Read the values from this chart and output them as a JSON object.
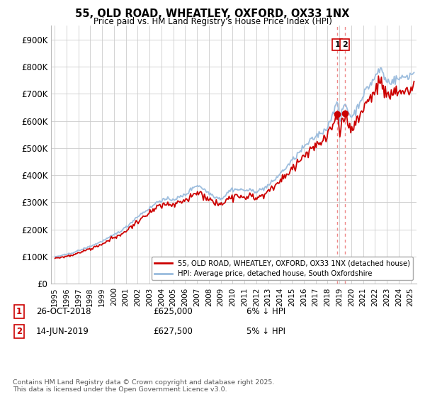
{
  "title": "55, OLD ROAD, WHEATLEY, OXFORD, OX33 1NX",
  "subtitle": "Price paid vs. HM Land Registry's House Price Index (HPI)",
  "background_color": "#ffffff",
  "plot_bg_color": "#ffffff",
  "grid_color": "#cccccc",
  "legend1_label": "55, OLD ROAD, WHEATLEY, OXFORD, OX33 1NX (detached house)",
  "legend2_label": "HPI: Average price, detached house, South Oxfordshire",
  "line1_color": "#cc0000",
  "line2_color": "#99bbdd",
  "sale1_date": "26-OCT-2018",
  "sale1_price": "£625,000",
  "sale1_pct": "6% ↓ HPI",
  "sale2_date": "14-JUN-2019",
  "sale2_price": "£627,500",
  "sale2_pct": "5% ↓ HPI",
  "footnote": "Contains HM Land Registry data © Crown copyright and database right 2025.\nThis data is licensed under the Open Government Licence v3.0.",
  "ylim": [
    0,
    950000
  ],
  "yticks": [
    0,
    100000,
    200000,
    300000,
    400000,
    500000,
    600000,
    700000,
    800000,
    900000
  ],
  "ytick_labels": [
    "£0",
    "£100K",
    "£200K",
    "£300K",
    "£400K",
    "£500K",
    "£600K",
    "£700K",
    "£800K",
    "£900K"
  ],
  "sale1_x": 2018.82,
  "sale1_y": 625000,
  "sale2_x": 2019.45,
  "sale2_y": 627500,
  "vline_color": "#ee8888",
  "xlim_left": 1994.7,
  "xlim_right": 2025.5
}
